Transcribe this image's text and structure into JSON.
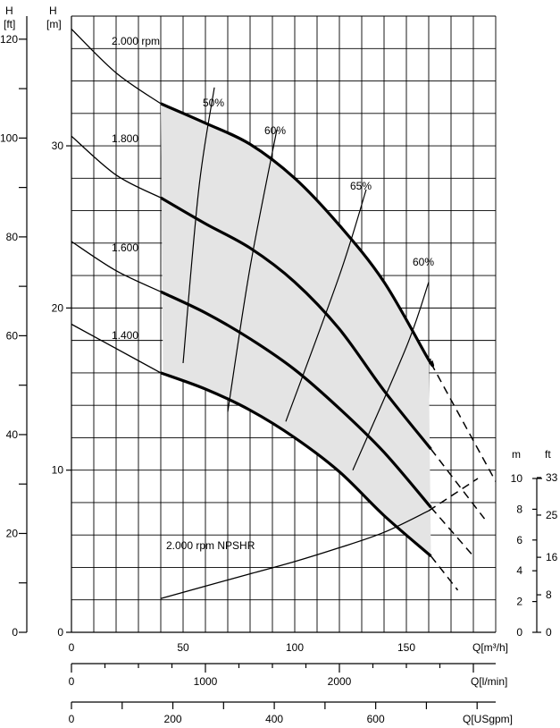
{
  "chart_data": {
    "type": "line",
    "title": "",
    "x_axes": [
      {
        "unit": "Q[m³/h]",
        "range": [
          0,
          190
        ],
        "ticks": [
          "0",
          "50",
          "100",
          "150"
        ]
      },
      {
        "unit": "Q[l/min]",
        "range": [
          0,
          3166.7
        ],
        "ticks": [
          "0",
          "1000",
          "2000"
        ]
      },
      {
        "unit": "Q[USgpm]",
        "range": [
          0,
          836.6
        ],
        "ticks": [
          "0",
          "200",
          "400",
          "600"
        ]
      }
    ],
    "y_axes": {
      "head_ft": {
        "unit_top": "H",
        "unit": "[ft]",
        "ticks": [
          "0",
          "20",
          "40",
          "60",
          "80",
          "100",
          "120"
        ]
      },
      "head_m": {
        "unit_top": "H",
        "unit": "[m]",
        "range": [
          0,
          38
        ],
        "ticks": [
          "0",
          "10",
          "20",
          "30"
        ]
      },
      "npsh_m": {
        "unit": "m",
        "range": [
          0,
          10
        ],
        "ticks": [
          "0",
          "2",
          "4",
          "6",
          "8",
          "10"
        ]
      },
      "npsh_ft": {
        "unit": "ft",
        "ticks": [
          "0",
          "8",
          "16",
          "25",
          "33"
        ]
      }
    },
    "grid": true,
    "speed_curves": [
      {
        "name": "2.000 rpm",
        "points": [
          [
            0,
            37.2
          ],
          [
            20,
            34.5
          ],
          [
            40,
            32.6
          ],
          [
            60,
            31.4
          ],
          [
            80,
            30.1
          ],
          [
            100,
            28.0
          ],
          [
            120,
            25.1
          ],
          [
            140,
            21.6
          ],
          [
            160,
            16.8
          ]
        ],
        "thick_from": 40,
        "thick_to": 161,
        "dashed": [
          [
            161,
            16.6
          ],
          [
            190,
            9.3
          ]
        ]
      },
      {
        "name": "1.800",
        "points": [
          [
            0,
            30.6
          ],
          [
            20,
            28.2
          ],
          [
            40,
            26.8
          ],
          [
            60,
            25.2
          ],
          [
            80,
            23.7
          ],
          [
            100,
            21.6
          ],
          [
            120,
            18.7
          ],
          [
            140,
            14.9
          ],
          [
            161,
            11.3
          ]
        ],
        "thick_from": 40,
        "thick_to": 161,
        "dashed": [
          [
            161,
            11.3
          ],
          [
            185,
            7.0
          ]
        ]
      },
      {
        "name": "1.600",
        "points": [
          [
            0,
            24.1
          ],
          [
            20,
            22.3
          ],
          [
            40,
            21.0
          ],
          [
            60,
            19.7
          ],
          [
            80,
            18.1
          ],
          [
            100,
            16.2
          ],
          [
            120,
            13.8
          ],
          [
            140,
            11.1
          ],
          [
            161,
            7.7
          ]
        ],
        "thick_from": 40,
        "thick_to": 161,
        "dashed": [
          [
            161,
            7.7
          ],
          [
            180,
            4.7
          ]
        ]
      },
      {
        "name": "1.400",
        "points": [
          [
            0,
            19.0
          ],
          [
            20,
            17.5
          ],
          [
            40,
            16.0
          ],
          [
            60,
            15.0
          ],
          [
            80,
            13.7
          ],
          [
            100,
            12.0
          ],
          [
            120,
            9.9
          ],
          [
            140,
            7.2
          ],
          [
            161,
            4.7
          ]
        ],
        "thick_from": 40,
        "thick_to": 161,
        "dashed": [
          [
            161,
            4.7
          ],
          [
            173,
            2.6
          ]
        ]
      }
    ],
    "efficiency_lines": [
      {
        "label": "50%",
        "points": [
          [
            50,
            16.6
          ],
          [
            57,
            27.3
          ],
          [
            64,
            33.6
          ]
        ]
      },
      {
        "label": "60%",
        "points": [
          [
            70,
            13.6
          ],
          [
            80,
            22.5
          ],
          [
            92,
            31.0
          ]
        ]
      },
      {
        "label": "65%",
        "points": [
          [
            96,
            13.0
          ],
          [
            120,
            22.0
          ],
          [
            132,
            27.3
          ]
        ]
      },
      {
        "label": "60%",
        "points": [
          [
            126,
            10.0
          ],
          [
            150,
            17.6
          ],
          [
            160,
            21.6
          ]
        ]
      }
    ],
    "npshr": {
      "name": "2.000 rpm NPSHR",
      "axis": "npsh_m",
      "points": [
        [
          40,
          2.2
        ],
        [
          60,
          3.0
        ],
        [
          80,
          3.8
        ],
        [
          100,
          4.6
        ],
        [
          120,
          5.5
        ],
        [
          140,
          6.5
        ],
        [
          160,
          7.9
        ]
      ],
      "dashed": [
        [
          160,
          7.9
        ],
        [
          182,
          10.0
        ]
      ]
    }
  },
  "labels": {
    "h_ft_top": "H",
    "h_ft_unit": "[ft]",
    "h_m_top": "H",
    "h_m_unit": "[m]",
    "npsh_m_unit": "m",
    "npsh_ft_unit": "ft",
    "q_m3h": "Q[m³/h]",
    "q_lmin": "Q[l/min]",
    "q_gpm": "Q[USgpm]",
    "rpm_2000": "2.000 rpm",
    "rpm_1800": "1.800",
    "rpm_1600": "1.600",
    "rpm_1400": "1.400",
    "npshr": "2.000 rpm NPSHR",
    "eff_50": "50%",
    "eff_60a": "60%",
    "eff_65": "65%",
    "eff_60b": "60%"
  },
  "colors": {
    "line": "#000000",
    "operating_region": "#e4e4e4",
    "background": "#ffffff"
  }
}
